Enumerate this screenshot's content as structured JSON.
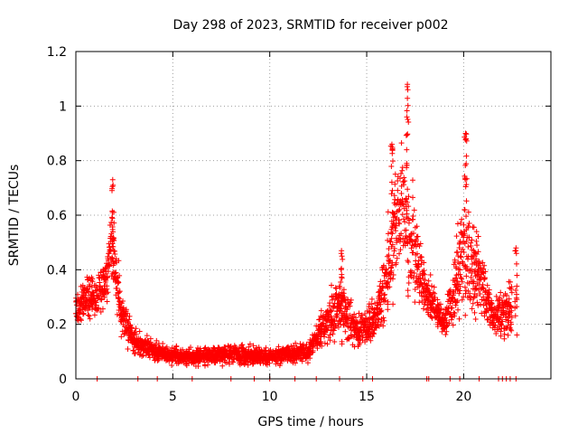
{
  "chart_data": {
    "type": "scatter",
    "title": "Day 298 of 2023, SRMTID for receiver p002",
    "xlabel": "GPS time / hours",
    "ylabel": "SRMTID / TECUs",
    "xlim": [
      0,
      24.5
    ],
    "ylim": [
      0,
      1.2
    ],
    "xticks": [
      0,
      5,
      10,
      15,
      20
    ],
    "xtick_labels": [
      "0",
      "5",
      "10",
      "15",
      "20"
    ],
    "yticks": [
      0,
      0.2,
      0.4,
      0.6,
      0.8,
      1.0,
      1.2
    ],
    "ytick_labels": [
      "0",
      "0.2",
      "0.4",
      "0.6",
      "0.8",
      "1",
      "1.2"
    ],
    "grid": true,
    "marker": "+",
    "color": "#ff0000",
    "series": [
      {
        "name": "p002",
        "envelope": [
          {
            "x": 0.0,
            "y": 0.25,
            "spread": 0.08
          },
          {
            "x": 0.5,
            "y": 0.3,
            "spread": 0.1
          },
          {
            "x": 1.0,
            "y": 0.3,
            "spread": 0.1
          },
          {
            "x": 1.5,
            "y": 0.35,
            "spread": 0.12
          },
          {
            "x": 1.9,
            "y": 0.5,
            "spread": 0.2
          },
          {
            "x": 2.3,
            "y": 0.25,
            "spread": 0.12
          },
          {
            "x": 3.0,
            "y": 0.14,
            "spread": 0.06
          },
          {
            "x": 4.0,
            "y": 0.1,
            "spread": 0.05
          },
          {
            "x": 6.0,
            "y": 0.08,
            "spread": 0.04
          },
          {
            "x": 8.0,
            "y": 0.09,
            "spread": 0.05
          },
          {
            "x": 10.0,
            "y": 0.08,
            "spread": 0.04
          },
          {
            "x": 12.0,
            "y": 0.1,
            "spread": 0.05
          },
          {
            "x": 13.6,
            "y": 0.28,
            "spread": 0.15
          },
          {
            "x": 14.5,
            "y": 0.17,
            "spread": 0.08
          },
          {
            "x": 15.5,
            "y": 0.22,
            "spread": 0.1
          },
          {
            "x": 16.2,
            "y": 0.45,
            "spread": 0.25
          },
          {
            "x": 16.8,
            "y": 0.65,
            "spread": 0.3
          },
          {
            "x": 17.3,
            "y": 0.5,
            "spread": 0.3
          },
          {
            "x": 18.0,
            "y": 0.33,
            "spread": 0.12
          },
          {
            "x": 19.0,
            "y": 0.2,
            "spread": 0.07
          },
          {
            "x": 20.0,
            "y": 0.45,
            "spread": 0.35
          },
          {
            "x": 20.8,
            "y": 0.4,
            "spread": 0.2
          },
          {
            "x": 21.5,
            "y": 0.22,
            "spread": 0.08
          },
          {
            "x": 22.5,
            "y": 0.25,
            "spread": 0.15
          }
        ],
        "peaks": [
          {
            "x": 1.9,
            "y": 0.73
          },
          {
            "x": 17.1,
            "y": 1.08
          },
          {
            "x": 20.1,
            "y": 0.9
          },
          {
            "x": 16.3,
            "y": 0.86
          },
          {
            "x": 13.7,
            "y": 0.47
          },
          {
            "x": 22.7,
            "y": 0.48
          }
        ],
        "zero_points": [
          1.1,
          3.2,
          4.2,
          6.0,
          8.0,
          9.2,
          10.0,
          11.3,
          12.4,
          13.6,
          14.8,
          15.3,
          18.1,
          18.2,
          19.3,
          19.8,
          20.8,
          21.8,
          22.0,
          22.2,
          22.4,
          22.7
        ]
      }
    ]
  }
}
